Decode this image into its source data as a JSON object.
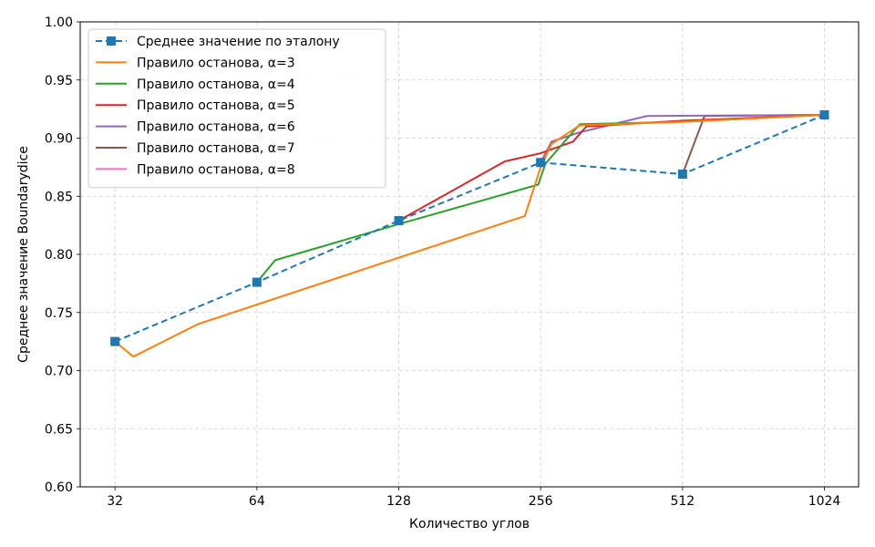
{
  "chart_data": {
    "type": "line",
    "title": "",
    "xlabel": "Количество углов",
    "ylabel": "Среднее значение Boundarydice",
    "x_scale": "log2",
    "xlim": [
      27,
      1210
    ],
    "ylim": [
      0.6,
      1.0
    ],
    "xticks": [
      32,
      64,
      128,
      256,
      512,
      1024
    ],
    "xtick_labels": [
      "32",
      "64",
      "128",
      "256",
      "512",
      "1024"
    ],
    "yticks": [
      0.6,
      0.65,
      0.7,
      0.75,
      0.8,
      0.85,
      0.9,
      0.95,
      1.0
    ],
    "ytick_labels": [
      "0.60",
      "0.65",
      "0.70",
      "0.75",
      "0.80",
      "0.85",
      "0.90",
      "0.95",
      "1.00"
    ],
    "grid": true,
    "legend_position": "top-left",
    "series": [
      {
        "name": "Среднее значение по эталону",
        "color": "#1f77b4",
        "style": "dashed",
        "marker": "square",
        "points": [
          [
            32,
            0.725
          ],
          [
            64,
            0.776
          ],
          [
            128,
            0.829
          ],
          [
            256,
            0.879
          ],
          [
            512,
            0.869
          ],
          [
            1024,
            0.92
          ]
        ]
      },
      {
        "name": "Правило останова, α=3",
        "color": "#ff7f0e",
        "style": "solid",
        "marker": "none",
        "points": [
          [
            32,
            0.725
          ],
          [
            35,
            0.712
          ],
          [
            48,
            0.74
          ],
          [
            237,
            0.833
          ],
          [
            256,
            0.875
          ],
          [
            270,
            0.895
          ],
          [
            310,
            0.911
          ],
          [
            512,
            0.914
          ],
          [
            1024,
            0.92
          ]
        ]
      },
      {
        "name": "Правило останова, α=4",
        "color": "#2ca02c",
        "style": "solid",
        "marker": "none",
        "points": [
          [
            64,
            0.776
          ],
          [
            70,
            0.795
          ],
          [
            128,
            0.826
          ],
          [
            253,
            0.86
          ],
          [
            262,
            0.878
          ],
          [
            310,
            0.912
          ],
          [
            512,
            0.914
          ],
          [
            1024,
            0.92
          ]
        ]
      },
      {
        "name": "Правило останова, α=5",
        "color": "#d62728",
        "style": "solid",
        "marker": "none",
        "points": [
          [
            128,
            0.829
          ],
          [
            215,
            0.88
          ],
          [
            256,
            0.887
          ],
          [
            300,
            0.897
          ],
          [
            320,
            0.91
          ],
          [
            512,
            0.915
          ],
          [
            1024,
            0.92
          ]
        ]
      },
      {
        "name": "Правило останова, α=6",
        "color": "#9467bd",
        "style": "solid",
        "marker": "none",
        "points": [
          [
            256,
            0.879
          ],
          [
            270,
            0.897
          ],
          [
            310,
            0.905
          ],
          [
            430,
            0.919
          ],
          [
            1024,
            0.92
          ]
        ]
      },
      {
        "name": "Правило останова, α=7",
        "color": "#8c564b",
        "style": "solid",
        "marker": "none",
        "points": [
          [
            512,
            0.869
          ],
          [
            570,
            0.919
          ],
          [
            1024,
            0.92
          ]
        ]
      },
      {
        "name": "Правило останова, α=8",
        "color": "#e377c2",
        "style": "solid",
        "marker": "none",
        "points": [
          [
            1024,
            0.92
          ]
        ]
      }
    ]
  }
}
